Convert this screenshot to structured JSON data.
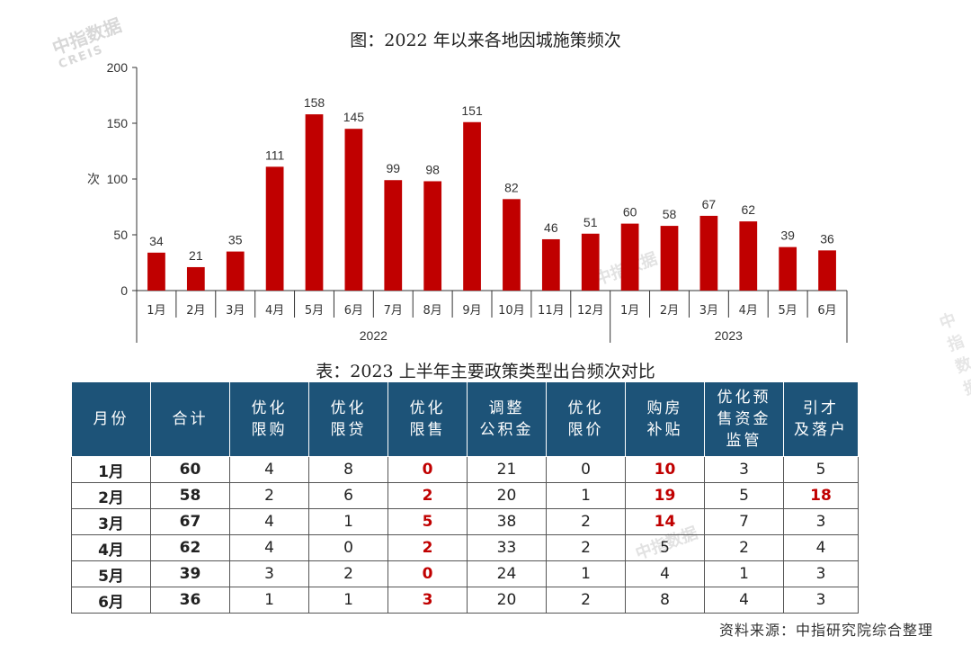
{
  "chart_data": {
    "type": "bar",
    "title": "图：2022 年以来各地因城施策频次",
    "ylabel": "次",
    "ylim": [
      0,
      200
    ],
    "yticks": [
      0,
      50,
      100,
      150,
      200
    ],
    "categories": [
      "1月",
      "2月",
      "3月",
      "4月",
      "5月",
      "6月",
      "7月",
      "8月",
      "9月",
      "10月",
      "11月",
      "12月",
      "1月",
      "2月",
      "3月",
      "4月",
      "5月",
      "6月"
    ],
    "values": [
      34,
      21,
      35,
      111,
      158,
      145,
      99,
      98,
      151,
      82,
      46,
      51,
      60,
      58,
      67,
      62,
      39,
      36
    ],
    "groups": [
      {
        "label": "2022",
        "count": 12
      },
      {
        "label": "2023",
        "count": 6
      }
    ],
    "bar_color": "#c00000",
    "grid": false
  },
  "table": {
    "title": "表：2023 上半年主要政策类型出台频次对比",
    "headers": [
      [
        "月份"
      ],
      [
        "合计"
      ],
      [
        "优化",
        "限购"
      ],
      [
        "优化",
        "限贷"
      ],
      [
        "优化",
        "限售"
      ],
      [
        "调整",
        "公积金"
      ],
      [
        "优化",
        "限价"
      ],
      [
        "购房",
        "补贴"
      ],
      [
        "优化预",
        "售资金",
        "监管"
      ],
      [
        "引才",
        "及落户"
      ]
    ],
    "rows": [
      {
        "month": "1月",
        "cells": [
          "60",
          "4",
          "8",
          "0",
          "21",
          "0",
          "10",
          "3",
          "5"
        ],
        "hl": [
          3,
          6
        ]
      },
      {
        "month": "2月",
        "cells": [
          "58",
          "2",
          "6",
          "2",
          "20",
          "1",
          "19",
          "5",
          "18"
        ],
        "hl": [
          3,
          6,
          8
        ]
      },
      {
        "month": "3月",
        "cells": [
          "67",
          "4",
          "1",
          "5",
          "38",
          "2",
          "14",
          "7",
          "3"
        ],
        "hl": [
          3,
          6
        ]
      },
      {
        "month": "4月",
        "cells": [
          "62",
          "4",
          "0",
          "2",
          "33",
          "2",
          "5",
          "2",
          "4"
        ],
        "hl": [
          3
        ]
      },
      {
        "month": "5月",
        "cells": [
          "39",
          "3",
          "2",
          "0",
          "24",
          "1",
          "4",
          "1",
          "3"
        ],
        "hl": [
          3
        ]
      },
      {
        "month": "6月",
        "cells": [
          "36",
          "1",
          "1",
          "3",
          "20",
          "2",
          "8",
          "4",
          "3"
        ],
        "hl": [
          3
        ]
      }
    ],
    "header_color": "#1d5378",
    "highlight_color": "#c00000"
  },
  "source": "资料来源：中指研究院综合整理",
  "watermark": {
    "cn": "中指数据",
    "en": "CREIS"
  }
}
